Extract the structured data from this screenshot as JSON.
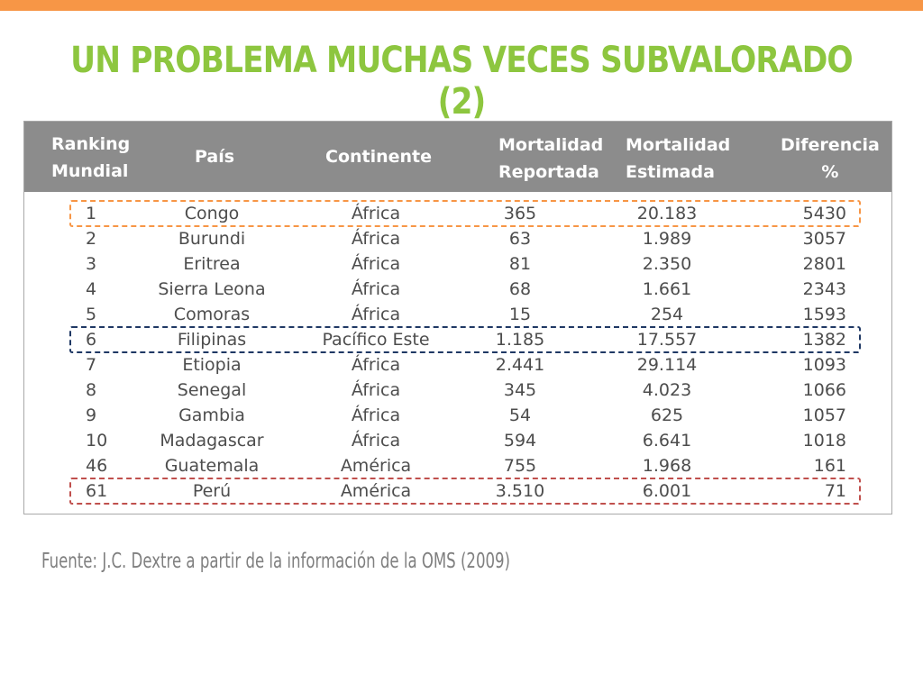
{
  "colors": {
    "accent": "#f79646",
    "title": "#8dc63f",
    "header_bg": "#8c8c8c",
    "highlight_orange": "#f79646",
    "highlight_blue": "#1f3864",
    "highlight_red": "#c0504d"
  },
  "slide": {
    "title": "UN PROBLEMA MUCHAS VECES SUBVALORADO (2)",
    "source": "Fuente: J.C. Dextre a partir de la información de la  OMS (2009)"
  },
  "table": {
    "headers": {
      "rank_l1": "Ranking",
      "rank_l2": "Mundial",
      "pais": "País",
      "continente": "Continente",
      "rep_l1": "Mortalidad",
      "rep_l2": "Reportada",
      "est_l1": "Mortalidad",
      "est_l2": "Estimada",
      "dif_l1": "Diferencia",
      "dif_l2": "%"
    },
    "rows": [
      {
        "rank": "1",
        "pais": "Congo",
        "continente": "África",
        "reportada": "365",
        "estimada": "20.183",
        "diferencia": "5430"
      },
      {
        "rank": "2",
        "pais": "Burundi",
        "continente": "África",
        "reportada": "63",
        "estimada": "1.989",
        "diferencia": "3057"
      },
      {
        "rank": "3",
        "pais": "Eritrea",
        "continente": "África",
        "reportada": "81",
        "estimada": "2.350",
        "diferencia": "2801"
      },
      {
        "rank": "4",
        "pais": "Sierra Leona",
        "continente": "África",
        "reportada": "68",
        "estimada": "1.661",
        "diferencia": "2343"
      },
      {
        "rank": "5",
        "pais": "Comoras",
        "continente": "África",
        "reportada": "15",
        "estimada": "254",
        "diferencia": "1593"
      },
      {
        "rank": "6",
        "pais": "Filipinas",
        "continente": "Pacífico Este",
        "reportada": "1.185",
        "estimada": "17.557",
        "diferencia": "1382"
      },
      {
        "rank": "7",
        "pais": "Etiopia",
        "continente": "África",
        "reportada": "2.441",
        "estimada": "29.114",
        "diferencia": "1093"
      },
      {
        "rank": "8",
        "pais": "Senegal",
        "continente": "África",
        "reportada": "345",
        "estimada": "4.023",
        "diferencia": "1066"
      },
      {
        "rank": "9",
        "pais": "Gambia",
        "continente": "África",
        "reportada": "54",
        "estimada": "625",
        "diferencia": "1057"
      },
      {
        "rank": "10",
        "pais": "Madagascar",
        "continente": "África",
        "reportada": "594",
        "estimada": "6.641",
        "diferencia": "1018"
      },
      {
        "rank": "46",
        "pais": "Guatemala",
        "continente": "América",
        "reportada": "755",
        "estimada": "1.968",
        "diferencia": "161"
      },
      {
        "rank": "61",
        "pais": "Perú",
        "continente": "América",
        "reportada": "3.510",
        "estimada": "6.001",
        "diferencia": "71"
      }
    ],
    "highlights": [
      {
        "row_index": 0,
        "color": "#f79646"
      },
      {
        "row_index": 5,
        "color": "#1f3864"
      },
      {
        "row_index": 11,
        "color": "#c0504d"
      }
    ]
  }
}
